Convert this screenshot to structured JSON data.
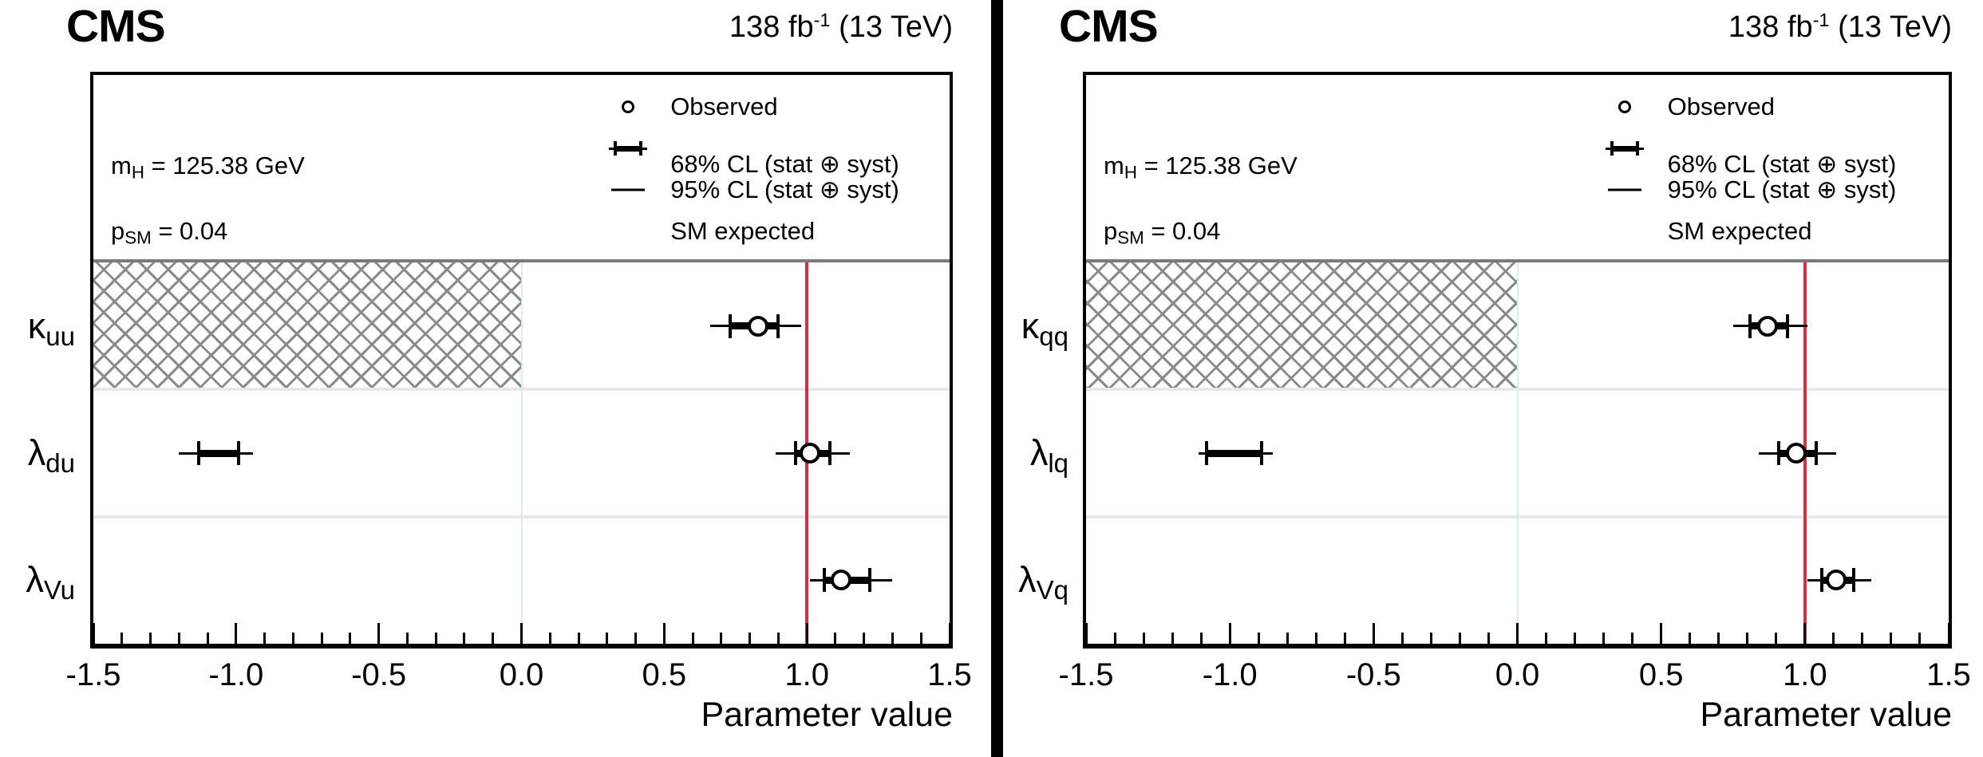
{
  "colors": {
    "sm_expected_red": "#e22a3f",
    "hatch_gray": "#8a8a8a",
    "header_separator_gray": "#7a7a7a",
    "band_separator_gray": "#e8e8e8",
    "zero_gridline": "#dfeaee",
    "frame_black": "#000000"
  },
  "shared": {
    "cms": "CMS",
    "lumi": {
      "text": "138 fb",
      "sup": "-1",
      "suffix": " (13 TeV)"
    },
    "mass": {
      "main": "m",
      "sub": "H",
      "rest": " = 125.38 GeV"
    },
    "psm": {
      "main": "p",
      "sub": "SM",
      "rest": " = 0.04"
    },
    "legend": [
      {
        "marker": "open-circle",
        "label": "Observed"
      },
      {
        "marker": "thick-errorbar-with-caps",
        "label": "68% CL (stat ⊕ syst)"
      },
      {
        "marker": "thin-line",
        "label": "95% CL (stat ⊕ syst)"
      },
      {
        "marker": "red-vertical-line",
        "label": "SM expected"
      }
    ],
    "xlabel": "Parameter value",
    "x_tick_labels": [
      "-1.5",
      "-1.0",
      "-0.5",
      "0.0",
      "0.5",
      "1.0",
      "1.5"
    ]
  },
  "chart_data": [
    {
      "type": "scatter",
      "subtype": "horizontal-error-bar-summary",
      "title": "CMS",
      "lumi": "138 fb-1 (13 TeV)",
      "xlabel": "Parameter value",
      "xlim": [
        -1.5,
        1.5
      ],
      "x_major_ticks": [
        -1.5,
        -1.0,
        -0.5,
        0.0,
        0.5,
        1.0,
        1.5
      ],
      "minor_tick_step": 0.1,
      "sm_expected": 1.0,
      "p_sm": 0.04,
      "m_h_gev": 125.38,
      "categories": [
        "κ_uu",
        "λ_du",
        "λ_Vu"
      ],
      "hatch": {
        "row_index": 0,
        "from": -1.5,
        "to": 0.0
      },
      "rows": [
        {
          "main": "κ",
          "sub": "uu",
          "intervals": [
            {
              "observed": 0.83,
              "ci68": [
                0.73,
                0.9
              ],
              "ci95": [
                0.66,
                0.98
              ]
            }
          ]
        },
        {
          "main": "λ",
          "sub": "du",
          "intervals": [
            {
              "observed": null,
              "ci68": [
                -1.13,
                -0.99
              ],
              "ci95": [
                -1.2,
                -0.94
              ]
            },
            {
              "observed": 1.01,
              "ci68": [
                0.96,
                1.08
              ],
              "ci95": [
                0.89,
                1.15
              ]
            }
          ]
        },
        {
          "main": "λ",
          "sub": "Vu",
          "intervals": [
            {
              "observed": 1.12,
              "ci68": [
                1.06,
                1.22
              ],
              "ci95": [
                1.01,
                1.3
              ]
            }
          ]
        }
      ]
    },
    {
      "type": "scatter",
      "subtype": "horizontal-error-bar-summary",
      "title": "CMS",
      "lumi": "138 fb-1 (13 TeV)",
      "xlabel": "Parameter value",
      "xlim": [
        -1.5,
        1.5
      ],
      "x_major_ticks": [
        -1.5,
        -1.0,
        -0.5,
        0.0,
        0.5,
        1.0,
        1.5
      ],
      "minor_tick_step": 0.1,
      "sm_expected": 1.0,
      "p_sm": 0.04,
      "m_h_gev": 125.38,
      "categories": [
        "κ_qq",
        "λ_lq",
        "λ_Vq"
      ],
      "hatch": {
        "row_index": 0,
        "from": -1.5,
        "to": 0.0
      },
      "rows": [
        {
          "main": "κ",
          "sub": "qq",
          "intervals": [
            {
              "observed": 0.87,
              "ci68": [
                0.81,
                0.94
              ],
              "ci95": [
                0.75,
                1.01
              ]
            }
          ]
        },
        {
          "main": "λ",
          "sub": "lq",
          "intervals": [
            {
              "observed": null,
              "ci68": [
                -1.08,
                -0.89
              ],
              "ci95": [
                -1.11,
                -0.85
              ]
            },
            {
              "observed": 0.97,
              "ci68": [
                0.91,
                1.04
              ],
              "ci95": [
                0.84,
                1.11
              ]
            }
          ]
        },
        {
          "main": "λ",
          "sub": "Vq",
          "intervals": [
            {
              "observed": 1.11,
              "ci68": [
                1.06,
                1.17
              ],
              "ci95": [
                1.01,
                1.23
              ]
            }
          ]
        }
      ]
    }
  ]
}
